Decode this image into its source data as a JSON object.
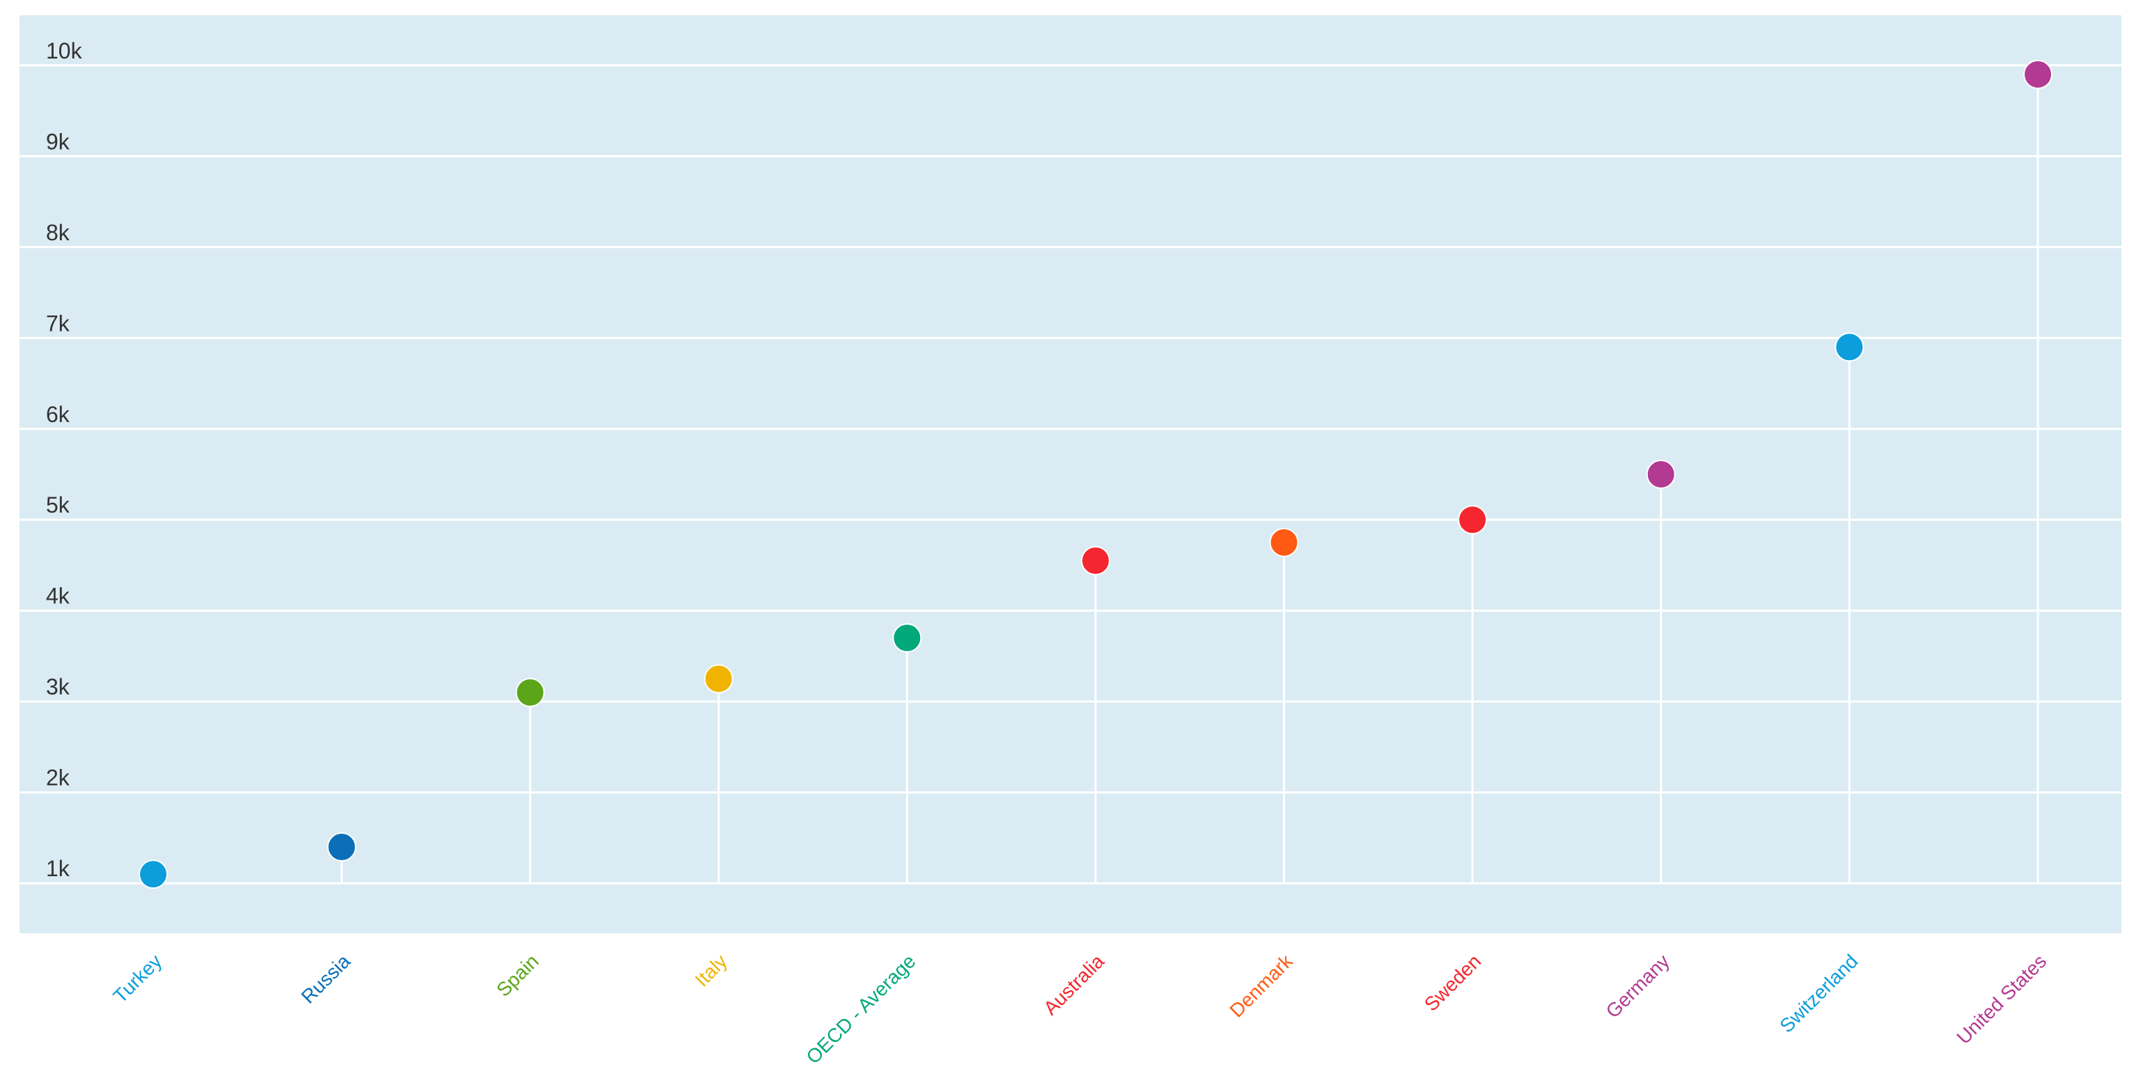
{
  "chart_data": {
    "type": "scatter",
    "style": "lollipop",
    "title": "",
    "xlabel": "",
    "ylabel": "",
    "categories": [
      "Turkey",
      "Russia",
      "Spain",
      "Italy",
      "OECD - Average",
      "Australia",
      "Denmark",
      "Sweden",
      "Germany",
      "Switzerland",
      "United States"
    ],
    "values": [
      1100,
      1400,
      3100,
      3250,
      3700,
      4550,
      4750,
      5000,
      5500,
      6900,
      9900
    ],
    "colors": [
      "#0b9ddc",
      "#0a6fb8",
      "#5aa51a",
      "#f0b400",
      "#00a87a",
      "#f5262f",
      "#ff5a14",
      "#f5262f",
      "#b23a92",
      "#0b9ddc",
      "#b23a92"
    ],
    "ylim": [
      0.45,
      10.55
    ],
    "yticks": [
      1000,
      2000,
      3000,
      4000,
      5000,
      6000,
      7000,
      8000,
      9000,
      10000
    ],
    "ytick_labels": [
      "1k",
      "2k",
      "3k",
      "4k",
      "5k",
      "6k",
      "7k",
      "8k",
      "9k",
      "10k"
    ],
    "grid": true,
    "legend": "none",
    "plot_background": "#daebf3",
    "gridline_color": "#ffffff",
    "stem_color": "#ffffff"
  }
}
